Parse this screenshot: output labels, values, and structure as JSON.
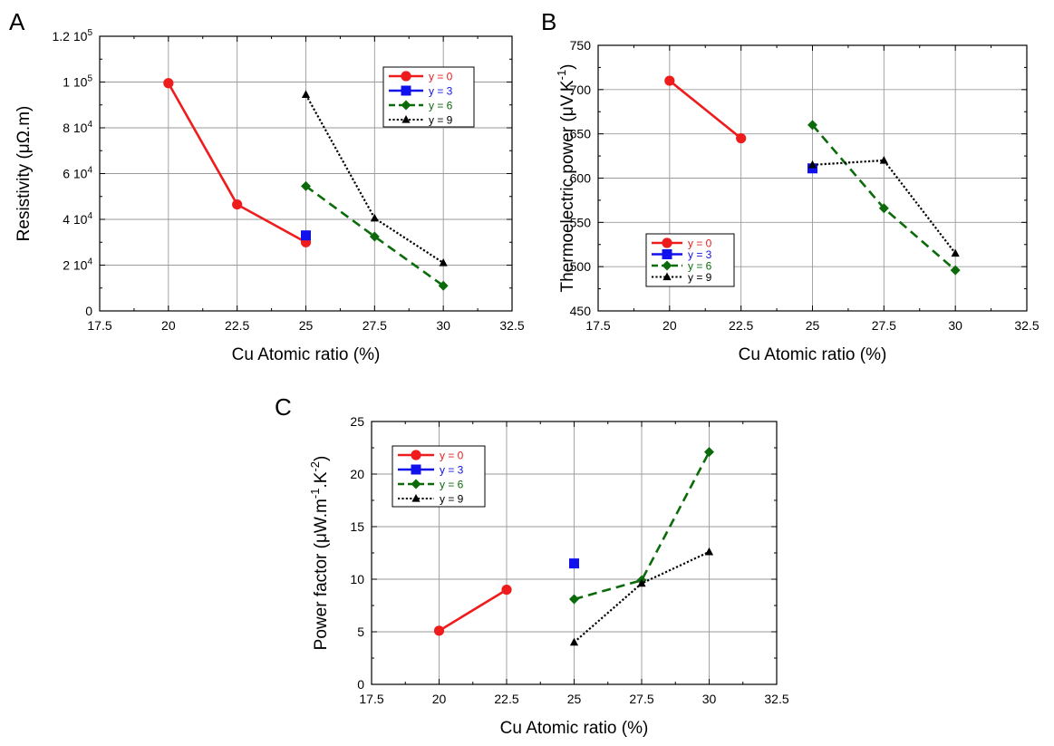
{
  "chart_data": [
    {
      "type": "line",
      "panel_label": "A",
      "xlabel": "Cu Atomic ratio (%)",
      "ylabel": "Resistivity (μΩ.m)",
      "xlim": [
        17.5,
        32.5
      ],
      "ylim": [
        0,
        120000
      ],
      "x_ticks": [
        17.5,
        20,
        22.5,
        25,
        27.5,
        30,
        32.5
      ],
      "x_tick_labels": [
        "17.5",
        "20",
        "22.5",
        "25",
        "27.5",
        "30",
        "32.5"
      ],
      "y_ticks": [
        0,
        20000,
        40000,
        60000,
        80000,
        100000,
        120000
      ],
      "y_tick_labels": [
        {
          "mant": "0",
          "exp": ""
        },
        {
          "mant": "2 10",
          "exp": "4"
        },
        {
          "mant": "4 10",
          "exp": "4"
        },
        {
          "mant": "6 10",
          "exp": "4"
        },
        {
          "mant": "8 10",
          "exp": "4"
        },
        {
          "mant": "1 10",
          "exp": "5"
        },
        {
          "mant": "1.2 10",
          "exp": "5"
        }
      ],
      "grid": true,
      "legend_position": "top-right",
      "series": [
        {
          "name": "y = 0",
          "color": "#ee1c1c",
          "label_color": "#ee1c1c",
          "marker": "circle",
          "dash": "solid",
          "x": [
            20,
            22.5,
            25
          ],
          "y": [
            99500,
            46500,
            30000
          ]
        },
        {
          "name": "y = 3",
          "color": "#1111ee",
          "label_color": "#1111ee",
          "marker": "square",
          "dash": "solid",
          "x": [
            25
          ],
          "y": [
            33000
          ]
        },
        {
          "name": "y = 6",
          "color": "#0b6b0b",
          "label_color": "#0b6b0b",
          "marker": "diamond",
          "dash": "dashed",
          "x": [
            25,
            27.5,
            30
          ],
          "y": [
            54500,
            32500,
            11000
          ]
        },
        {
          "name": "y = 9",
          "color": "#000000",
          "label_color": "#000000",
          "marker": "triangle",
          "dash": "dotted",
          "x": [
            25,
            27.5,
            30
          ],
          "y": [
            94500,
            40500,
            21000
          ]
        }
      ]
    },
    {
      "type": "line",
      "panel_label": "B",
      "xlabel": "Cu Atomic ratio (%)",
      "ylabel": "Thermoelectric power (μV.K",
      "ylabel_sup": "-1",
      "ylabel_end": ")",
      "xlim": [
        17.5,
        32.5
      ],
      "ylim": [
        450,
        750
      ],
      "x_ticks": [
        17.5,
        20,
        22.5,
        25,
        27.5,
        30,
        32.5
      ],
      "x_tick_labels": [
        "17.5",
        "20",
        "22.5",
        "25",
        "27.5",
        "30",
        "32.5"
      ],
      "y_ticks": [
        450,
        500,
        550,
        600,
        650,
        700,
        750
      ],
      "y_tick_labels": [
        {
          "mant": "450",
          "exp": ""
        },
        {
          "mant": "500",
          "exp": ""
        },
        {
          "mant": "550",
          "exp": ""
        },
        {
          "mant": "600",
          "exp": ""
        },
        {
          "mant": "650",
          "exp": ""
        },
        {
          "mant": "700",
          "exp": ""
        },
        {
          "mant": "750",
          "exp": ""
        }
      ],
      "grid": true,
      "legend_position": "bottom-left",
      "series": [
        {
          "name": "y = 0",
          "color": "#ee1c1c",
          "label_color": "#ee1c1c",
          "marker": "circle",
          "dash": "solid",
          "x": [
            20,
            22.5
          ],
          "y": [
            710,
            645
          ]
        },
        {
          "name": "y = 3",
          "color": "#1111ee",
          "label_color": "#1111ee",
          "marker": "square",
          "dash": "solid",
          "x": [
            25
          ],
          "y": [
            611
          ]
        },
        {
          "name": "y = 6",
          "color": "#0b6b0b",
          "label_color": "#0b6b0b",
          "marker": "diamond",
          "dash": "dashed",
          "x": [
            25,
            27.5,
            30
          ],
          "y": [
            660,
            566,
            496
          ]
        },
        {
          "name": "y = 9",
          "color": "#000000",
          "label_color": "#000000",
          "marker": "triangle",
          "dash": "dotted",
          "x": [
            25,
            27.5,
            30
          ],
          "y": [
            615,
            620,
            515
          ]
        }
      ]
    },
    {
      "type": "line",
      "panel_label": "C",
      "xlabel": "Cu Atomic ratio (%)",
      "ylabel": "Power factor (μW.m",
      "ylabel_sup": "-1",
      "ylabel_mid": ".K",
      "ylabel_sup2": "-2",
      "ylabel_end": ")",
      "xlim": [
        17.5,
        32.5
      ],
      "ylim": [
        0,
        25
      ],
      "x_ticks": [
        17.5,
        20,
        22.5,
        25,
        27.5,
        30,
        32.5
      ],
      "x_tick_labels": [
        "17.5",
        "20",
        "22.5",
        "25",
        "27.5",
        "30",
        "32.5"
      ],
      "y_ticks": [
        0,
        5,
        10,
        15,
        20,
        25
      ],
      "y_tick_labels": [
        {
          "mant": "0",
          "exp": ""
        },
        {
          "mant": "5",
          "exp": ""
        },
        {
          "mant": "10",
          "exp": ""
        },
        {
          "mant": "15",
          "exp": ""
        },
        {
          "mant": "20",
          "exp": ""
        },
        {
          "mant": "25",
          "exp": ""
        }
      ],
      "grid": true,
      "legend_position": "top-left",
      "series": [
        {
          "name": "y = 0",
          "color": "#ee1c1c",
          "label_color": "#ee1c1c",
          "marker": "circle",
          "dash": "solid",
          "x": [
            20,
            22.5
          ],
          "y": [
            5.1,
            9.0
          ]
        },
        {
          "name": "y = 3",
          "color": "#1111ee",
          "label_color": "#1111ee",
          "marker": "square",
          "dash": "solid",
          "x": [
            25
          ],
          "y": [
            11.5
          ]
        },
        {
          "name": "y = 6",
          "color": "#0b6b0b",
          "label_color": "#0b6b0b",
          "marker": "diamond",
          "dash": "dashed",
          "x": [
            25,
            27.5,
            30
          ],
          "y": [
            8.1,
            9.9,
            22.1
          ]
        },
        {
          "name": "y = 9",
          "color": "#000000",
          "label_color": "#000000",
          "marker": "triangle",
          "dash": "dotted",
          "x": [
            25,
            27.5,
            30
          ],
          "y": [
            4.0,
            9.6,
            12.6
          ]
        }
      ]
    }
  ]
}
